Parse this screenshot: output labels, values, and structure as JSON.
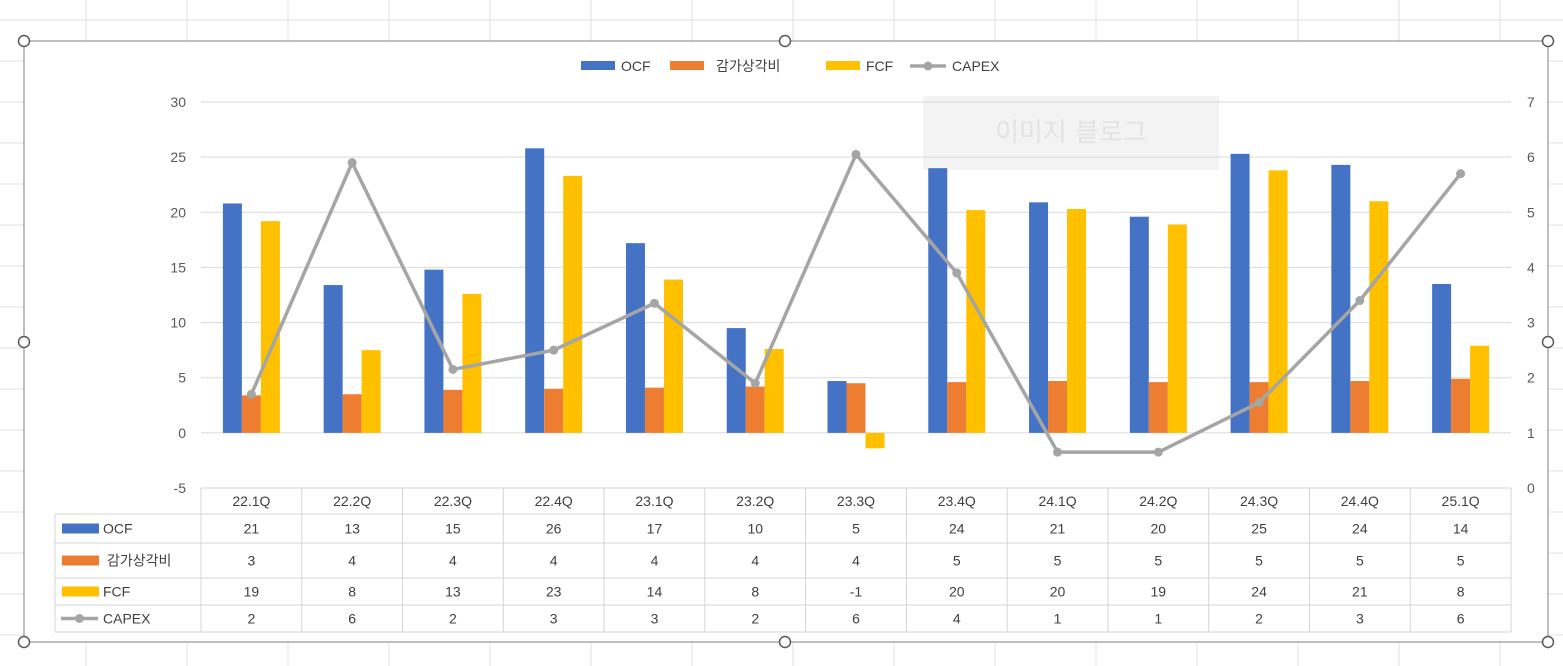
{
  "chart_data": {
    "type": "bar",
    "categories": [
      "22.1Q",
      "22.2Q",
      "22.3Q",
      "22.4Q",
      "23.1Q",
      "23.2Q",
      "23.3Q",
      "23.4Q",
      "24.1Q",
      "24.2Q",
      "24.3Q",
      "24.4Q",
      "25.1Q"
    ],
    "series": [
      {
        "name": "OCF",
        "type": "bar",
        "axis": "left",
        "color": "#4472C4",
        "values": [
          20.8,
          13.4,
          14.8,
          25.8,
          17.2,
          9.5,
          4.7,
          24.0,
          20.9,
          19.6,
          25.3,
          24.3,
          13.5
        ],
        "table_values": [
          "21",
          "13",
          "15",
          "26",
          "17",
          "10",
          "5",
          "24",
          "21",
          "20",
          "25",
          "24",
          "14"
        ]
      },
      {
        "name": "감가상각비",
        "type": "bar",
        "axis": "left",
        "color": "#ED7D31",
        "values": [
          3.4,
          3.5,
          3.9,
          4.0,
          4.1,
          4.2,
          4.5,
          4.6,
          4.7,
          4.6,
          4.6,
          4.7,
          4.9
        ],
        "table_values": [
          "3",
          "4",
          "4",
          "4",
          "4",
          "4",
          "4",
          "5",
          "5",
          "5",
          "5",
          "5",
          "5"
        ]
      },
      {
        "name": "FCF",
        "type": "bar",
        "axis": "left",
        "color": "#FFC000",
        "values": [
          19.2,
          7.5,
          12.6,
          23.3,
          13.9,
          7.6,
          -1.4,
          20.2,
          20.3,
          18.9,
          23.8,
          21.0,
          7.9
        ],
        "table_values": [
          "19",
          "8",
          "13",
          "23",
          "14",
          "8",
          "-1",
          "20",
          "20",
          "19",
          "24",
          "21",
          "8"
        ]
      },
      {
        "name": "CAPEX",
        "type": "line",
        "axis": "right",
        "color": "#A5A5A5",
        "values": [
          1.7,
          5.9,
          2.15,
          2.5,
          3.35,
          1.9,
          6.05,
          3.9,
          0.65,
          0.65,
          1.55,
          3.4,
          5.7
        ],
        "table_values": [
          "2",
          "6",
          "2",
          "3",
          "3",
          "2",
          "6",
          "4",
          "1",
          "1",
          "2",
          "3",
          "6"
        ]
      }
    ],
    "left_axis": {
      "ylim": [
        -5,
        30
      ],
      "ticks": [
        "-5",
        "0",
        "5",
        "10",
        "15",
        "20",
        "25",
        "30"
      ]
    },
    "right_axis": {
      "ylim": [
        0,
        7
      ],
      "ticks": [
        "0",
        "1",
        "2",
        "3",
        "4",
        "5",
        "6",
        "7"
      ]
    },
    "legend_position": "top-center",
    "grid": true,
    "has_data_table": true,
    "title": "",
    "watermark": "이미지 블로그"
  }
}
